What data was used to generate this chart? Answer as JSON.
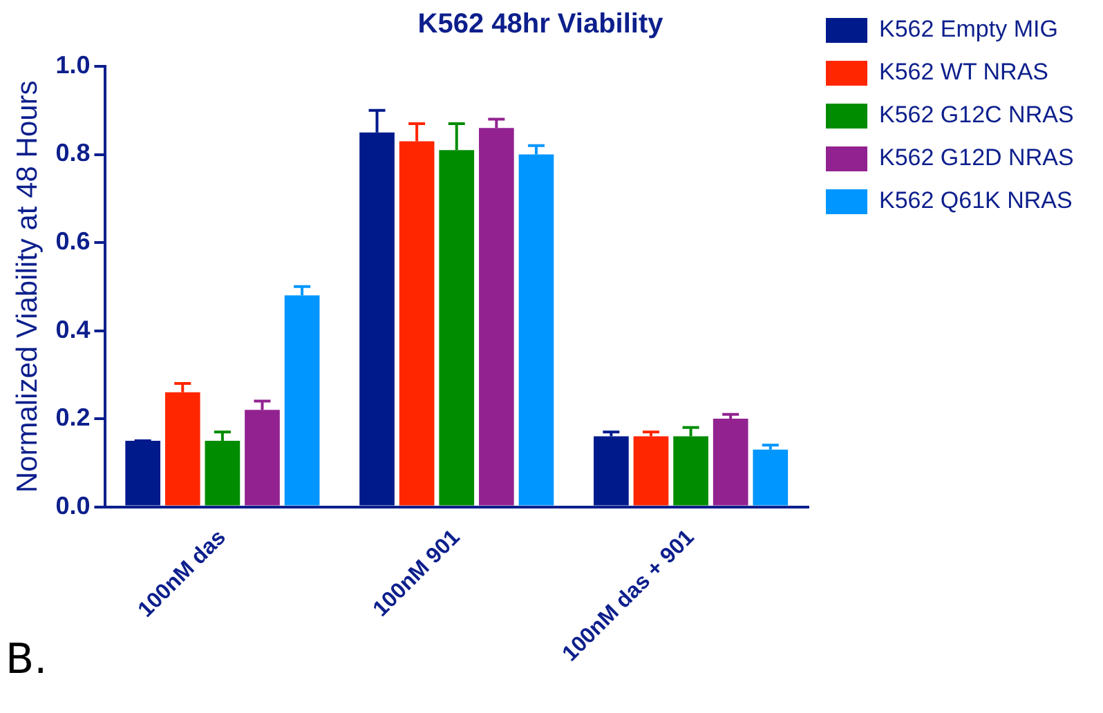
{
  "chart_data": {
    "type": "bar",
    "title": "K562 48hr Viability",
    "ylabel": "Normalized Viability at 48 Hours",
    "categories": [
      "100nM das",
      "100nM 901",
      "100nM das + 901"
    ],
    "series": [
      {
        "name": "K562 Empty MIG",
        "color": "#001a8c",
        "values": [
          0.15,
          0.85,
          0.16
        ],
        "errors": [
          [
            0.15,
            0.15
          ],
          [
            0.85,
            0.9
          ],
          [
            0.16,
            0.17
          ]
        ]
      },
      {
        "name": "K562 WT NRAS",
        "color": "#ff2600",
        "values": [
          0.26,
          0.83,
          0.16
        ],
        "errors": [
          [
            0.26,
            0.28
          ],
          [
            0.83,
            0.87
          ],
          [
            0.16,
            0.17
          ]
        ]
      },
      {
        "name": "K562 G12C NRAS",
        "color": "#008c00",
        "values": [
          0.15,
          0.81,
          0.16
        ],
        "errors": [
          [
            0.15,
            0.17
          ],
          [
            0.81,
            0.87
          ],
          [
            0.16,
            0.18
          ]
        ]
      },
      {
        "name": "K562 G12D NRAS",
        "color": "#922290",
        "values": [
          0.22,
          0.86,
          0.2
        ],
        "errors": [
          [
            0.22,
            0.24
          ],
          [
            0.86,
            0.88
          ],
          [
            0.2,
            0.21
          ]
        ]
      },
      {
        "name": "K562 Q61K NRAS",
        "color": "#0096ff",
        "values": [
          0.48,
          0.8,
          0.13
        ],
        "errors": [
          [
            0.48,
            0.5
          ],
          [
            0.8,
            0.82
          ],
          [
            0.13,
            0.14
          ]
        ]
      }
    ],
    "ylim": [
      0,
      1
    ],
    "yticks": [
      {
        "value": 0,
        "label": "0.0"
      },
      {
        "value": 0.2,
        "label": "0.2"
      },
      {
        "value": 0.4,
        "label": "0.4"
      },
      {
        "value": 0.6,
        "label": "0.6"
      },
      {
        "value": 0.8,
        "label": "0.8"
      },
      {
        "value": 1,
        "label": "1.0"
      }
    ],
    "legend": "top right",
    "annotations": [
      "B."
    ]
  }
}
